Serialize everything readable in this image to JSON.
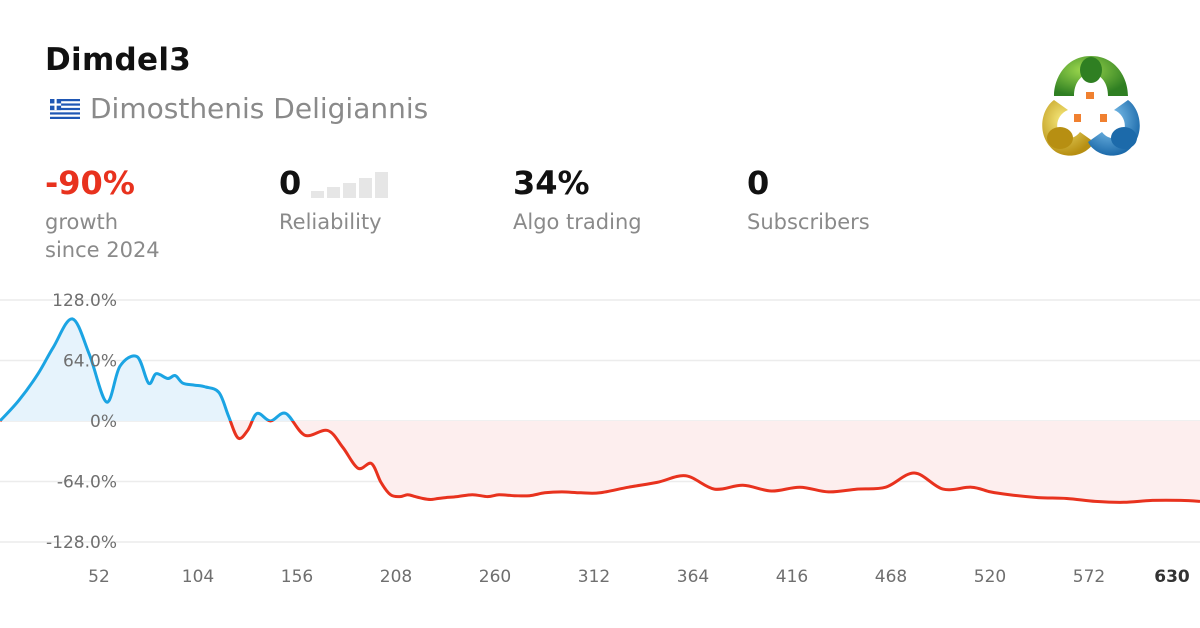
{
  "header": {
    "title": "Dimdel3",
    "author": "Dimosthenis Deligiannis",
    "flag_icon": "greece-flag-icon",
    "logo_icon": "metatrader-logo-icon"
  },
  "stats": {
    "growth": {
      "value": "-90%",
      "label_line1": "growth",
      "label_line2": "since 2024",
      "color": "#e8321e"
    },
    "reliability": {
      "value": "0",
      "label": "Reliability",
      "level": 0,
      "max_level": 5
    },
    "algo": {
      "value": "34%",
      "label": "Algo trading"
    },
    "subscribers": {
      "value": "0",
      "label": "Subscribers"
    }
  },
  "colors": {
    "positive_line": "#1ba4e3",
    "negative_line": "#e8321e",
    "positive_fill": "#e6f3fc",
    "negative_fill": "#fdeeee",
    "grid": "#ececec"
  },
  "chart_data": {
    "type": "area",
    "xlabel": "",
    "ylabel": "",
    "x_ticks": [
      "52",
      "104",
      "156",
      "208",
      "260",
      "312",
      "364",
      "416",
      "468",
      "520",
      "572",
      "630"
    ],
    "y_ticks": [
      "128.0%",
      "64.0%",
      "0%",
      "-64.0%",
      "-128.0%"
    ],
    "ylim": [
      -128,
      128
    ],
    "xlim": [
      0,
      630
    ],
    "grid": true,
    "series": [
      {
        "x": [
          0,
          10,
          20,
          28,
          38,
          47,
          56,
          63,
          72,
          78,
          82,
          88,
          92,
          96,
          102,
          108,
          115,
          120,
          125,
          130,
          135,
          142,
          150,
          160,
          172,
          180,
          188,
          195,
          200,
          205,
          210,
          214,
          218,
          222,
          226,
          230,
          234,
          240,
          248,
          256,
          262,
          270,
          278,
          286,
          295,
          305,
          315,
          330,
          345,
          360,
          375,
          390,
          405,
          420,
          435,
          450,
          465,
          480,
          495,
          510,
          520,
          530,
          545,
          560,
          575,
          590,
          605,
          620,
          630
        ],
        "y": [
          0,
          22,
          50,
          78,
          108,
          70,
          20,
          58,
          68,
          40,
          50,
          45,
          48,
          40,
          38,
          36,
          30,
          5,
          -18,
          -10,
          8,
          0,
          8,
          -15,
          -10,
          -28,
          -50,
          -45,
          -65,
          -78,
          -80,
          -78,
          -80,
          -82,
          -83,
          -82,
          -81,
          -80,
          -78,
          -80,
          -78,
          -79,
          -79,
          -76,
          -75,
          -76,
          -76,
          -70,
          -65,
          -58,
          -72,
          -68,
          -74,
          -70,
          -75,
          -72,
          -70,
          -55,
          -72,
          -70,
          -75,
          -78,
          -81,
          -82,
          -85,
          -86,
          -84,
          -84,
          -85
        ]
      }
    ]
  }
}
